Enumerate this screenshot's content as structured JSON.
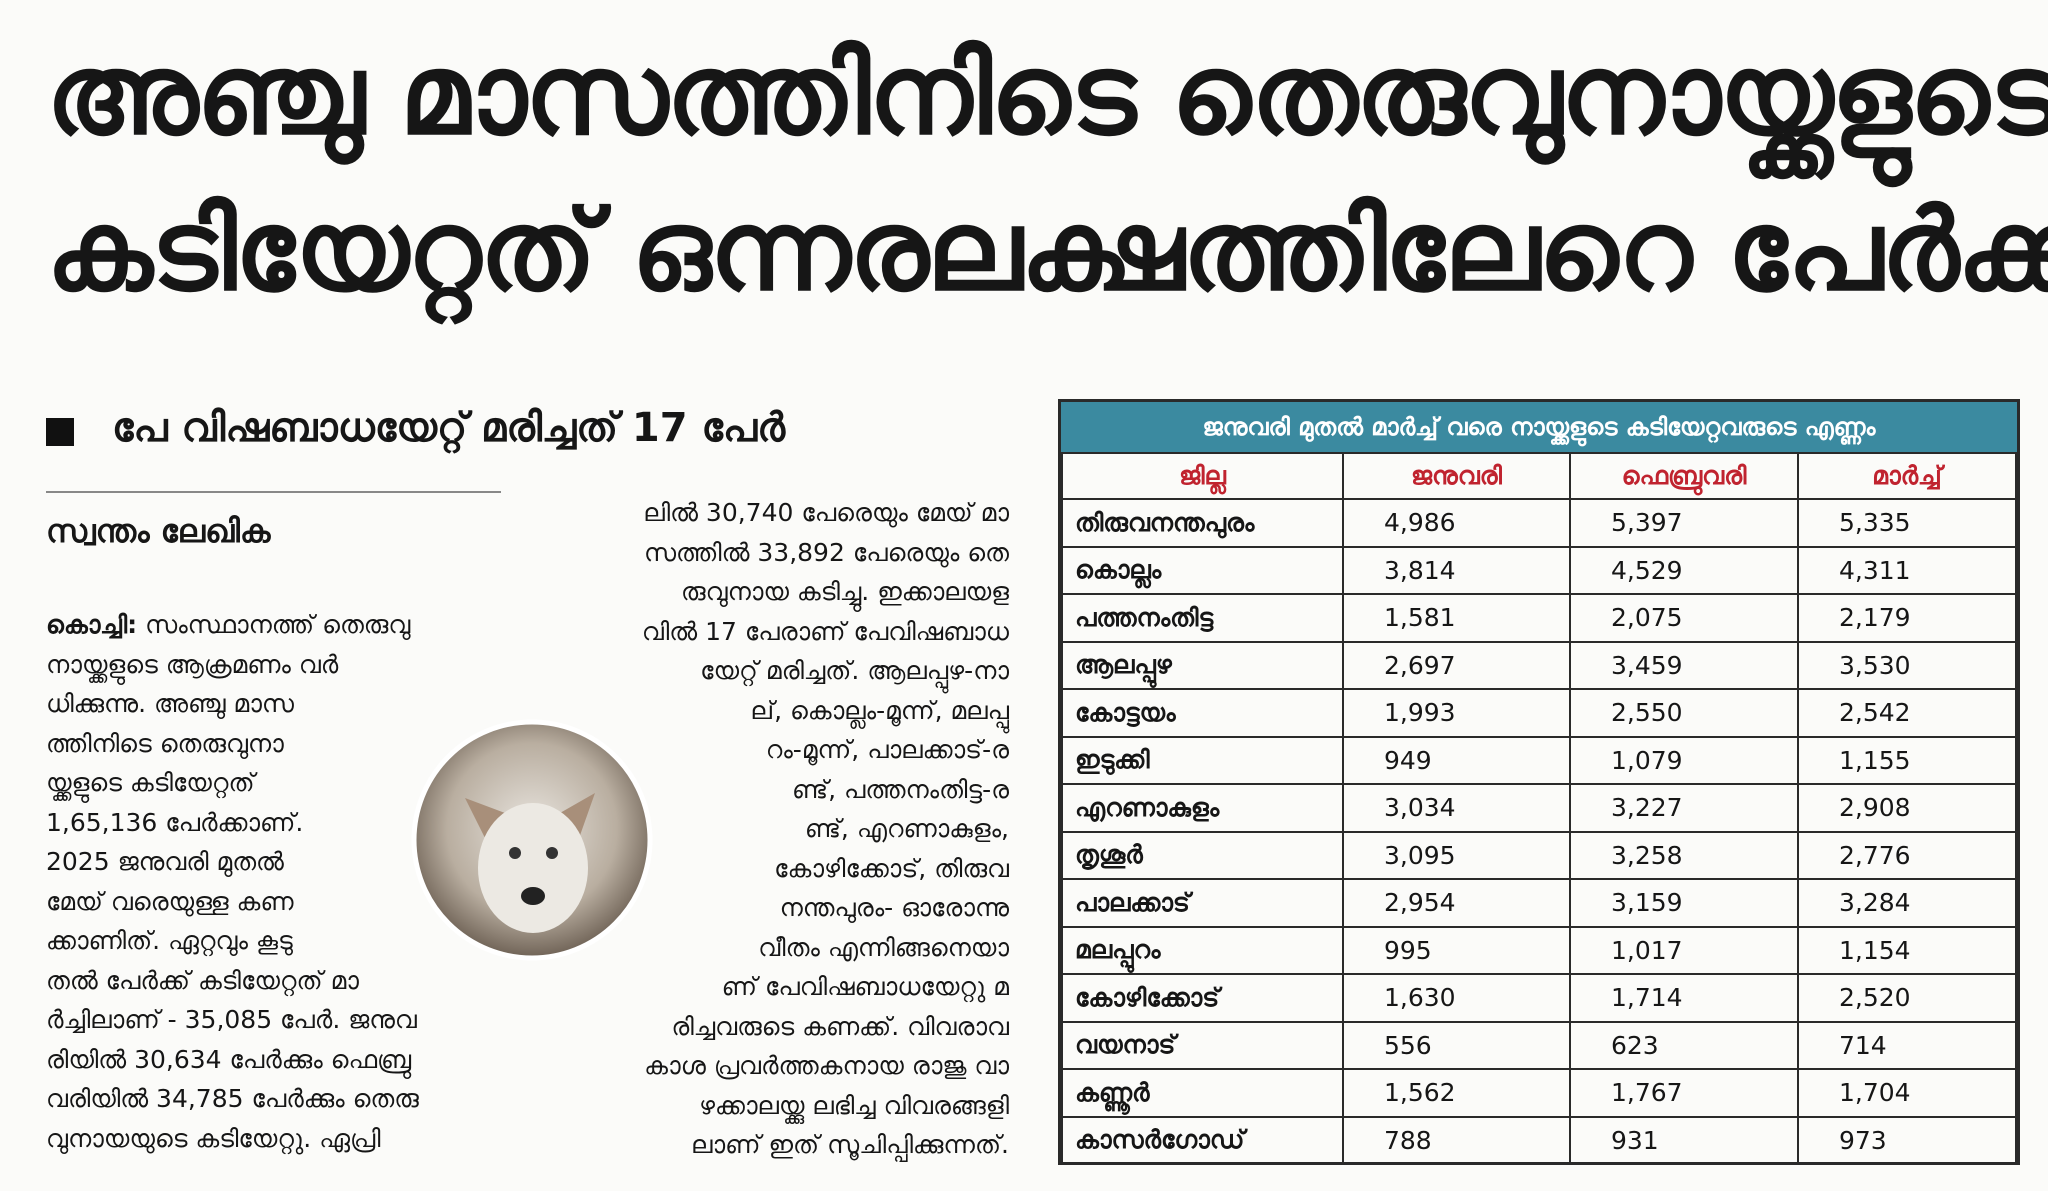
{
  "headline": [
    "അഞ്ചു മാസത്തിനിടെ തെരുവുനായ്ക്കളുടെ",
    "കടിയേറ്റത് ഒന്നരലക്ഷത്തിലേറെ പേർക്ക്"
  ],
  "subheading": "പേ വിഷബാധയേറ്റ് മരിച്ചത് 17 പേർ",
  "byline": "സ്വന്തം ലേഖിക",
  "dateline": "കൊച്ചി:",
  "column1": [
    "സംസ്ഥാനത്ത് തെരുവു",
    "നായ്ക്കളുടെ ആക്രമണം വർ",
    "ധിക്കുന്നു. അഞ്ചു മാസ",
    "ത്തിനിടെ തെരുവുനാ",
    "യ്ക്കളുടെ കടിയേറ്റത്",
    "1,65,136 പേർക്കാണ്.",
    "2025 ജനുവരി മുതൽ",
    "മേയ് വരെയുള്ള കണ",
    "ക്കാണിത്. ഏറ്റവും കൂടു",
    "തൽ പേർക്ക് കടിയേറ്റത് മാ",
    "ർച്ചിലാണ് - 35,085 പേർ. ജനുവ",
    "രിയിൽ 30,634 പേർക്കും ഫെബ്രു",
    "വരിയിൽ 34,785 പേർക്കും തെരു",
    "വുനായയുടെ കടിയേറ്റു. ഏപ്രി"
  ],
  "column2": [
    "ലിൽ 30,740 പേരെയും മേയ് മാ",
    "സത്തിൽ 33,892 പേരെയും തെ",
    "രുവുനായ കടിച്ചു. ഇക്കാലയള",
    "വിൽ 17 പേരാണ് പേവിഷബാധ",
    "യേറ്റ് മരിച്ചത്. ആലപ്പുഴ-നാ",
    "ല്, കൊല്ലം-മൂന്ന്, മലപ്പു",
    "റം-മൂന്ന്, പാലക്കാട്-ര",
    "ണ്ട്, പത്തനംതിട്ട-ര",
    "ണ്ട്, എറണാകുളം,",
    "കോഴിക്കോട്, തിരുവ",
    "നന്തപുരം- ഓരോന്നു",
    "വീതം എന്നിങ്ങനെയാ",
    "ണ് പേവിഷബാധയേറ്റു മ",
    "രിച്ചവരുടെ കണക്ക്. വിവരാവ",
    "കാശ പ്രവർത്തകനായ രാജു വാ",
    "ഴക്കാലയ്ക്കു ലഭിച്ച വിവരങ്ങളി",
    "ലാണ് ഇത് സൂചിപ്പിക്കുന്നത്."
  ],
  "table": {
    "title": "ജനുവരി മുതൽ മാർച്ച് വരെ നായ്ക്കളുടെ കടിയേറ്റവരുടെ എണ്ണം",
    "header": [
      "ജില്ല",
      "ജനുവരി",
      "ഫെബ്രുവരി",
      "മാർച്ച്"
    ],
    "rows": [
      [
        "തിരുവനന്തപുരം",
        "4,986",
        "5,397",
        "5,335"
      ],
      [
        "കൊല്ലം",
        "3,814",
        "4,529",
        "4,311"
      ],
      [
        "പത്തനംതിട്ട",
        "1,581",
        "2,075",
        "2,179"
      ],
      [
        "ആലപ്പുഴ",
        "2,697",
        "3,459",
        "3,530"
      ],
      [
        "കോട്ടയം",
        "1,993",
        "2,550",
        "2,542"
      ],
      [
        "ഇടുക്കി",
        "949",
        "1,079",
        "1,155"
      ],
      [
        "എറണാകുളം",
        "3,034",
        "3,227",
        "2,908"
      ],
      [
        "തൃശൂർ",
        "3,095",
        "3,258",
        "2,776"
      ],
      [
        "പാലക്കാട്",
        "2,954",
        "3,159",
        "3,284"
      ],
      [
        "മലപ്പുറം",
        "995",
        "1,017",
        "1,154"
      ],
      [
        "കോഴിക്കോട്",
        "1,630",
        "1,714",
        "2,520"
      ],
      [
        "വയനാട്",
        "556",
        "623",
        "714"
      ],
      [
        "കണ്ണൂർ",
        "1,562",
        "1,767",
        "1,704"
      ],
      [
        "കാസർഗോഡ്",
        "788",
        "931",
        "973"
      ]
    ]
  }
}
